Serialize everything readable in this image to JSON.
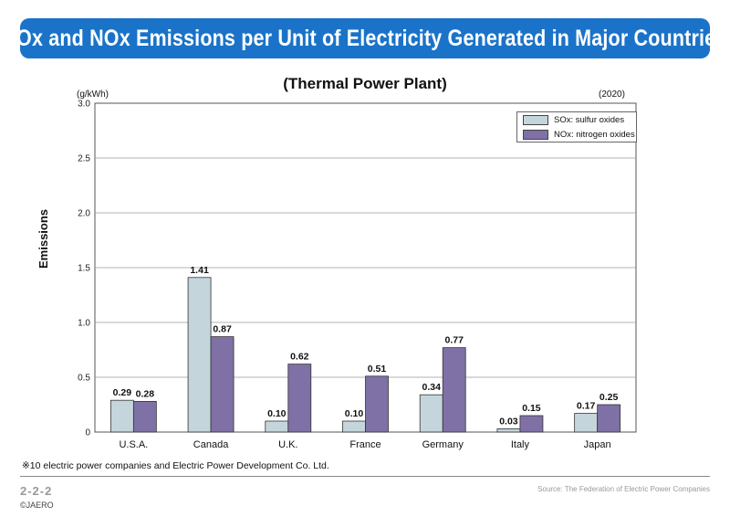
{
  "header": {
    "title": "SOx and NOx Emissions per Unit of Electricity Generated in Major Countries"
  },
  "chart_data": {
    "type": "bar",
    "title": "(Thermal Power Plant)",
    "unit_label": "(g/kWh)",
    "year_label": "(2020)",
    "ylabel": "Emissions",
    "xlabel": "",
    "ylim": [
      0,
      3.0
    ],
    "yticks": [
      "0",
      "0.5",
      "1.0",
      "1.5",
      "2.0",
      "2.5",
      "3.0"
    ],
    "ytick_values": [
      0,
      0.5,
      1.0,
      1.5,
      2.0,
      2.5,
      3.0
    ],
    "grid": true,
    "legend_position": "top-right",
    "categories": [
      "U.S.A.",
      "Canada",
      "U.K.",
      "France",
      "Germany",
      "Italy",
      "Japan"
    ],
    "series": [
      {
        "name": "SOx: sulfur oxides",
        "color": "#c5d5dc",
        "values": [
          0.29,
          1.41,
          0.1,
          0.1,
          0.34,
          0.03,
          0.17
        ],
        "labels": [
          "0.29",
          "1.41",
          "0.10",
          "0.10",
          "0.34",
          "0.03",
          "0.17"
        ]
      },
      {
        "name": "NOx: nitrogen oxides",
        "color": "#7f71a6",
        "values": [
          0.28,
          0.87,
          0.62,
          0.51,
          0.77,
          0.15,
          0.25
        ],
        "labels": [
          "0.28",
          "0.87",
          "0.62",
          "0.51",
          "0.77",
          "0.15",
          "0.25"
        ]
      }
    ]
  },
  "footnote": "※10 electric power companies and Electric Power Development Co. Ltd.",
  "footer": {
    "page_number": "2-2-2",
    "copyright": "©JAERO",
    "source": "Source: The Federation of Electric Power Companies"
  },
  "colors": {
    "banner": "#1a73c8",
    "sox": "#c5d5dc",
    "nox": "#7f71a6"
  }
}
